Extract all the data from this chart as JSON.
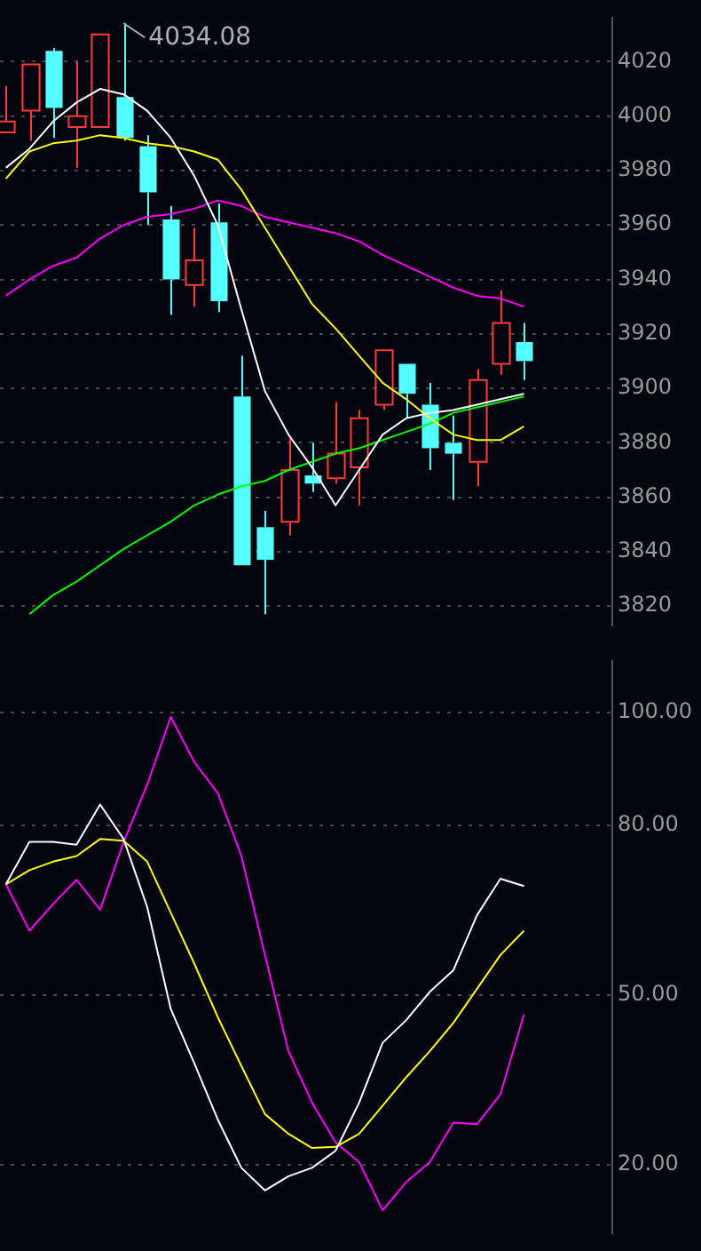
{
  "chart_data": [
    {
      "type": "candlestick",
      "categories": [
        null,
        null,
        null,
        null,
        null,
        null,
        null,
        null,
        null,
        null,
        null,
        null,
        null,
        null,
        null,
        null,
        null,
        null,
        null,
        null,
        null,
        null,
        null
      ],
      "ohlc": [
        [
          3994,
          4011,
          3994,
          3998
        ],
        [
          4002,
          4019,
          3991,
          4019
        ],
        [
          4024,
          4025,
          3992,
          4003
        ],
        [
          3996,
          4020,
          3981,
          4000
        ],
        [
          3996,
          4030,
          3996,
          4030
        ],
        [
          4007,
          4034.08,
          3991,
          3992
        ],
        [
          3989,
          3993,
          3960,
          3972
        ],
        [
          3962,
          3967,
          3927,
          3940
        ],
        [
          3938,
          3959,
          3930,
          3947
        ],
        [
          3961,
          3968,
          3928,
          3932
        ],
        [
          3897,
          3912,
          3835,
          3835
        ],
        [
          3849,
          3855,
          3817,
          3837
        ],
        [
          3851,
          3882,
          3846,
          3870
        ],
        [
          3868,
          3880,
          3862,
          3865
        ],
        [
          3867,
          3895,
          3865,
          3876
        ],
        [
          3871,
          3892,
          3857,
          3889
        ],
        [
          3894,
          3914,
          3892,
          3914
        ],
        [
          3909,
          3909,
          3889,
          3898
        ],
        [
          3894,
          3902,
          3870,
          3878
        ],
        [
          3880,
          3890,
          3859,
          3876
        ],
        [
          3873,
          3907,
          3864,
          3903
        ],
        [
          3909,
          3936,
          3905,
          3924
        ],
        [
          3917,
          3924,
          3903,
          3910
        ]
      ],
      "series": [
        {
          "type": "line",
          "color": "#ffffff",
          "values": [
            3981,
            3988,
            3998,
            4005,
            4010,
            4008,
            4002,
            3992,
            3978,
            3960,
            3929,
            3899,
            3883,
            3871,
            3857,
            3870,
            3883,
            3889,
            3891,
            3892,
            3894,
            3896,
            3898
          ]
        },
        {
          "type": "line",
          "color": "#ffff00",
          "values": [
            3977,
            3987,
            3990,
            3991,
            3993,
            3992,
            3990,
            3989,
            3987,
            3984,
            3973,
            3959,
            3945,
            3931,
            3922,
            3912,
            3902,
            3896,
            3889,
            3883,
            3881,
            3881,
            3886
          ]
        },
        {
          "type": "line",
          "color": "#ff00ff",
          "values": [
            3934,
            3940,
            3945,
            3948,
            3955,
            3960,
            3963,
            3964,
            3966,
            3969,
            3967,
            3963,
            3961,
            3959,
            3957,
            3954,
            3949,
            3945,
            3941,
            3937,
            3934,
            3933,
            3930
          ]
        },
        {
          "type": "line",
          "color": "#00ff00",
          "values": [
            null,
            3817,
            3824,
            3829,
            3835,
            3841,
            3846,
            3851,
            3857,
            3861,
            3864,
            3866,
            3870,
            3873,
            3876,
            3878,
            3881,
            3884,
            3887,
            3891,
            3893,
            3895,
            3897
          ]
        }
      ],
      "ylim": [
        3813,
        4036
      ],
      "yticks": [
        3820,
        3840,
        3860,
        3880,
        3900,
        3920,
        3940,
        3960,
        3980,
        4000,
        4020
      ],
      "grid": "y",
      "tick_labels": "y",
      "annotations": [
        "4034.08"
      ]
    },
    {
      "type": "line",
      "categories": [
        null,
        null,
        null,
        null,
        null,
        null,
        null,
        null,
        null,
        null,
        null,
        null,
        null,
        null,
        null,
        null,
        null,
        null,
        null,
        null,
        null,
        null,
        null
      ],
      "series": [
        {
          "color": "#ffffff",
          "values": [
            69.6,
            77.1,
            77.1,
            76.6,
            83.7,
            77.6,
            65.6,
            47.6,
            38,
            28,
            19.5,
            15.5,
            18,
            19.5,
            22.5,
            31,
            41.6,
            45.6,
            50.6,
            54.4,
            64.1,
            70.6,
            69.3
          ]
        },
        {
          "color": "#ffff00",
          "values": [
            69.6,
            72.1,
            73.6,
            74.6,
            77.6,
            77.3,
            73.6,
            64.6,
            55.6,
            46.1,
            37.5,
            29,
            25.5,
            23,
            23.2,
            25.5,
            30.5,
            35.5,
            40.1,
            45.1,
            51.1,
            57.1,
            61.4
          ]
        },
        {
          "color": "#ff00ff",
          "values": [
            69.6,
            61.4,
            66.1,
            70.4,
            65.1,
            77.1,
            87.2,
            99.2,
            91.2,
            85.7,
            74.6,
            57.1,
            40.1,
            31,
            24,
            20.5,
            12,
            17,
            20.5,
            27.5,
            27.2,
            32.5,
            46.6
          ]
        }
      ],
      "ylim": [
        8,
        109
      ],
      "yticks": [
        {
          "value": 20,
          "label": "20.00"
        },
        {
          "value": 50,
          "label": "50.00"
        },
        {
          "value": 80,
          "label": "80.00"
        },
        {
          "value": 100,
          "label": "100.00"
        }
      ],
      "grid": "y",
      "tick_labels": "y"
    }
  ]
}
